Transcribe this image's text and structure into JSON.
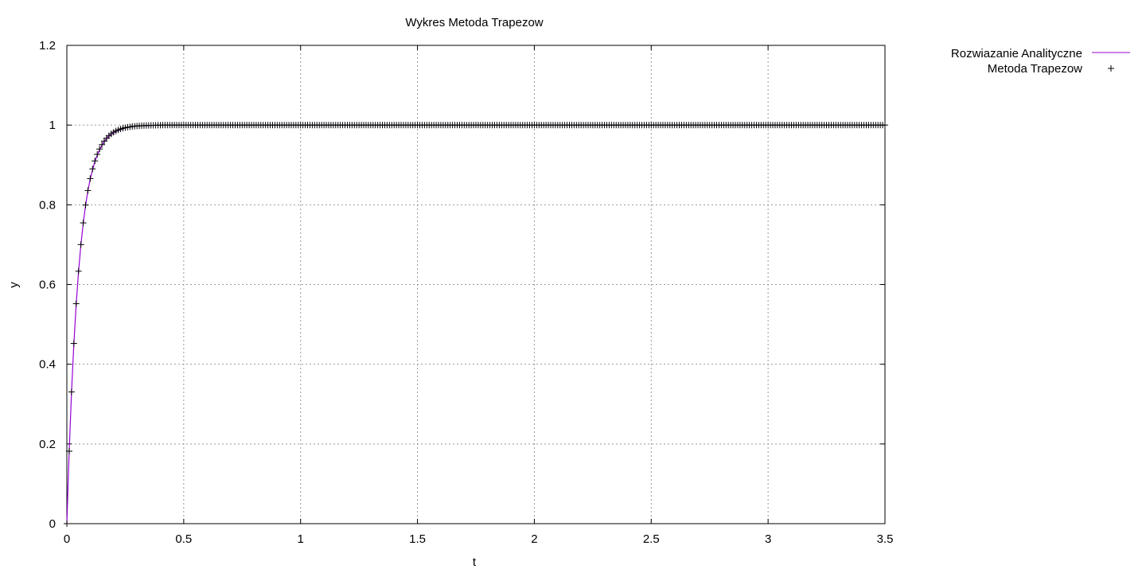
{
  "chart_data": {
    "type": "line",
    "title": "Wykres Metoda Trapezow",
    "xlabel": "t",
    "ylabel": "y",
    "xlim": [
      0,
      3.5
    ],
    "ylim": [
      0,
      1.2
    ],
    "xticks": [
      "0",
      "0.5",
      "1",
      "1.5",
      "2",
      "2.5",
      "3",
      "3.5"
    ],
    "yticks": [
      "0",
      "0.2",
      "0.4",
      "0.6",
      "0.8",
      "1",
      "1.2"
    ],
    "grid": true,
    "legend_position": "top-right outside plot",
    "series": [
      {
        "name": "Rozwiazanie Analityczne",
        "style": "line",
        "color": "#9400d3",
        "x": [
          0,
          0.005,
          0.01,
          0.02,
          0.03,
          0.04,
          0.05,
          0.06,
          0.07,
          0.08,
          0.09,
          0.1,
          0.12,
          0.14,
          0.16,
          0.18,
          0.2,
          0.25,
          0.3,
          0.35,
          0.4,
          0.5,
          1,
          1.5,
          2,
          2.5,
          3,
          3.5
        ],
        "y": [
          0,
          0.095,
          0.181,
          0.33,
          0.451,
          0.551,
          0.632,
          0.699,
          0.753,
          0.798,
          0.835,
          0.865,
          0.909,
          0.939,
          0.959,
          0.973,
          0.982,
          0.993,
          0.998,
          0.999,
          1.0,
          1.0,
          1.0,
          1.0,
          1.0,
          1.0,
          1.0,
          1.0
        ]
      },
      {
        "name": "Metoda Trapezow",
        "style": "points",
        "marker": "+",
        "color": "#000000",
        "x_start": 0,
        "x_step": 0.01,
        "x_end": 3.5,
        "y": [
          0,
          0.1818,
          0.3306,
          0.4523,
          0.5519,
          0.6334,
          0.7001,
          0.7546,
          0.7993,
          0.8358,
          0.8657,
          0.8901,
          0.9101,
          0.9265,
          0.9399,
          0.9508,
          0.9598,
          0.9671,
          0.9731,
          0.978,
          0.982,
          0.9853,
          0.988,
          0.9902,
          0.992,
          0.9934,
          0.9946,
          0.9956,
          0.9964,
          0.9971,
          0.9976,
          0.998,
          0.9984,
          0.9987,
          0.9989,
          0.9991,
          0.9993,
          0.9994,
          0.9995,
          0.9996,
          0.9997,
          1.0
        ]
      }
    ]
  }
}
